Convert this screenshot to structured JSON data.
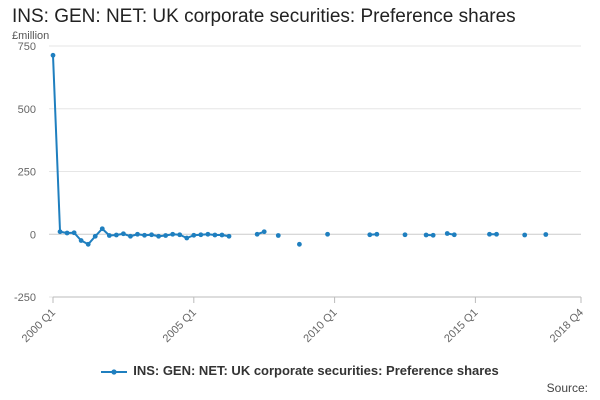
{
  "chart_data": {
    "type": "line",
    "title": "INS: GEN: NET: UK corporate securities: Preference shares",
    "ylabel": "£million",
    "ylim": [
      -250,
      750
    ],
    "yticks": [
      -250,
      0,
      250,
      500,
      750
    ],
    "x_range": [
      "2000 Q1",
      "2018 Q4"
    ],
    "xticks": [
      "2000 Q1",
      "2005 Q1",
      "2010 Q1",
      "2015 Q1",
      "2018 Q4"
    ],
    "grid": true,
    "legend_position": "bottom",
    "color": "#1f7fbf",
    "series": [
      {
        "name": "INS: GEN: NET: UK corporate securities: Preference shares",
        "points": [
          {
            "x": "2000 Q1",
            "y": 713
          },
          {
            "x": "2000 Q2",
            "y": 10
          },
          {
            "x": "2000 Q3",
            "y": 5
          },
          {
            "x": "2000 Q4",
            "y": 6
          },
          {
            "x": "2001 Q1",
            "y": -25
          },
          {
            "x": "2001 Q2",
            "y": -40
          },
          {
            "x": "2001 Q3",
            "y": -8
          },
          {
            "x": "2001 Q4",
            "y": 22
          },
          {
            "x": "2002 Q1",
            "y": -5
          },
          {
            "x": "2002 Q2",
            "y": -3
          },
          {
            "x": "2002 Q3",
            "y": 2
          },
          {
            "x": "2002 Q4",
            "y": -8
          },
          {
            "x": "2003 Q1",
            "y": 0
          },
          {
            "x": "2003 Q2",
            "y": -4
          },
          {
            "x": "2003 Q3",
            "y": -2
          },
          {
            "x": "2003 Q4",
            "y": -8
          },
          {
            "x": "2004 Q1",
            "y": -5
          },
          {
            "x": "2004 Q2",
            "y": 0
          },
          {
            "x": "2004 Q3",
            "y": -2
          },
          {
            "x": "2004 Q4",
            "y": -15
          },
          {
            "x": "2005 Q1",
            "y": -4
          },
          {
            "x": "2005 Q2",
            "y": -2
          },
          {
            "x": "2005 Q3",
            "y": 0
          },
          {
            "x": "2005 Q4",
            "y": -3
          },
          {
            "x": "2006 Q1",
            "y": -3
          },
          {
            "x": "2006 Q2",
            "y": -8
          },
          {
            "x": "2006 Q3",
            "y": null
          },
          {
            "x": "2006 Q4",
            "y": null
          },
          {
            "x": "2007 Q1",
            "y": null
          },
          {
            "x": "2007 Q2",
            "y": 0
          },
          {
            "x": "2007 Q3",
            "y": 10
          },
          {
            "x": "2007 Q4",
            "y": null
          },
          {
            "x": "2008 Q1",
            "y": -5
          },
          {
            "x": "2008 Q2",
            "y": null
          },
          {
            "x": "2008 Q3",
            "y": null
          },
          {
            "x": "2008 Q4",
            "y": -40
          },
          {
            "x": "2009 Q1",
            "y": null
          },
          {
            "x": "2009 Q2",
            "y": null
          },
          {
            "x": "2009 Q3",
            "y": null
          },
          {
            "x": "2009 Q4",
            "y": 0
          },
          {
            "x": "2010 Q1",
            "y": null
          },
          {
            "x": "2010 Q2",
            "y": null
          },
          {
            "x": "2010 Q3",
            "y": null
          },
          {
            "x": "2010 Q4",
            "y": null
          },
          {
            "x": "2011 Q1",
            "y": null
          },
          {
            "x": "2011 Q2",
            "y": -2
          },
          {
            "x": "2011 Q3",
            "y": 0
          },
          {
            "x": "2011 Q4",
            "y": null
          },
          {
            "x": "2012 Q1",
            "y": null
          },
          {
            "x": "2012 Q2",
            "y": null
          },
          {
            "x": "2012 Q3",
            "y": -2
          },
          {
            "x": "2012 Q4",
            "y": null
          },
          {
            "x": "2013 Q1",
            "y": null
          },
          {
            "x": "2013 Q2",
            "y": -3
          },
          {
            "x": "2013 Q3",
            "y": -4
          },
          {
            "x": "2013 Q4",
            "y": null
          },
          {
            "x": "2014 Q1",
            "y": 3
          },
          {
            "x": "2014 Q2",
            "y": -2
          },
          {
            "x": "2014 Q3",
            "y": null
          },
          {
            "x": "2014 Q4",
            "y": null
          },
          {
            "x": "2015 Q1",
            "y": null
          },
          {
            "x": "2015 Q2",
            "y": null
          },
          {
            "x": "2015 Q3",
            "y": 0
          },
          {
            "x": "2015 Q4",
            "y": 0
          },
          {
            "x": "2016 Q1",
            "y": null
          },
          {
            "x": "2016 Q2",
            "y": null
          },
          {
            "x": "2016 Q3",
            "y": null
          },
          {
            "x": "2016 Q4",
            "y": -3
          },
          {
            "x": "2017 Q1",
            "y": null
          },
          {
            "x": "2017 Q2",
            "y": null
          },
          {
            "x": "2017 Q3",
            "y": -1
          }
        ]
      }
    ]
  },
  "source_label": "Source:"
}
